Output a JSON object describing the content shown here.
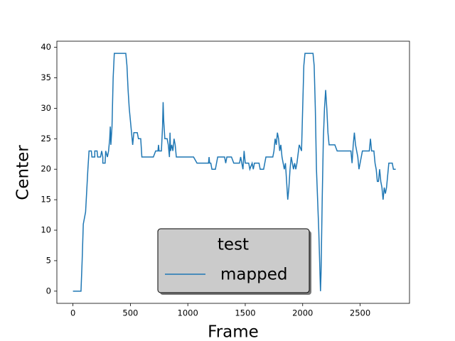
{
  "chart_data": {
    "type": "line",
    "x_label": "Frame",
    "y_label": "Center",
    "legend": "lower center",
    "legend_title": "test",
    "xlim": [
      -140,
      2930
    ],
    "ylim": [
      -2,
      41
    ],
    "xticks": [
      0,
      500,
      1000,
      1500,
      2000,
      2500
    ],
    "yticks": [
      0,
      5,
      10,
      15,
      20,
      25,
      30,
      35,
      40
    ],
    "series": [
      {
        "name": "mapped",
        "color": "#1f77b4",
        "x": [
          0,
          70,
          80,
          90,
          110,
          130,
          140,
          160,
          165,
          190,
          190,
          210,
          215,
          240,
          250,
          260,
          260,
          280,
          285,
          300,
          310,
          320,
          325,
          330,
          340,
          350,
          360,
          460,
          470,
          480,
          490,
          510,
          520,
          530,
          560,
          570,
          590,
          600,
          700,
          720,
          740,
          745,
          750,
          770,
          780,
          785,
          790,
          800,
          820,
          830,
          840,
          845,
          850,
          860,
          870,
          880,
          890,
          900,
          1000,
          1050,
          1080,
          1180,
          1185,
          1190,
          1200,
          1210,
          1240,
          1250,
          1260,
          1320,
          1330,
          1340,
          1380,
          1400,
          1450,
          1460,
          1470,
          1480,
          1490,
          1500,
          1530,
          1540,
          1560,
          1570,
          1580,
          1620,
          1630,
          1660,
          1680,
          1740,
          1750,
          1760,
          1770,
          1780,
          1790,
          1800,
          1810,
          1820,
          1830,
          1840,
          1850,
          1860,
          1870,
          1880,
          1890,
          1900,
          1910,
          1920,
          1930,
          1940,
          1950,
          1970,
          1990,
          2000,
          2010,
          2020,
          2090,
          2100,
          2110,
          2120,
          2140,
          2155,
          2160,
          2170,
          2180,
          2190,
          2200,
          2210,
          2220,
          2230,
          2260,
          2280,
          2300,
          2420,
          2430,
          2440,
          2450,
          2460,
          2480,
          2490,
          2500,
          2520,
          2580,
          2590,
          2600,
          2620,
          2630,
          2640,
          2650,
          2660,
          2670,
          2680,
          2690,
          2700,
          2710,
          2720,
          2730,
          2740,
          2750,
          2780,
          2790,
          2810
        ],
        "values": [
          0,
          0,
          5,
          11,
          13,
          20,
          23,
          23,
          22,
          22,
          23,
          23,
          22,
          22,
          23,
          22,
          21,
          21,
          23,
          22,
          23,
          25,
          27,
          24,
          27,
          35,
          39,
          39,
          37,
          33,
          30,
          26,
          24,
          26,
          26,
          25,
          25,
          22,
          22,
          23,
          23,
          24,
          23,
          23,
          27,
          31,
          28,
          25,
          25,
          24,
          22,
          26,
          23,
          24,
          23,
          25,
          24,
          22,
          22,
          22,
          21,
          21,
          22,
          21,
          21,
          20,
          20,
          21,
          22,
          22,
          21,
          22,
          22,
          21,
          21,
          22,
          21,
          20,
          23,
          21,
          21,
          20,
          21,
          20,
          21,
          21,
          20,
          20,
          22,
          22,
          23,
          25,
          24,
          26,
          25,
          23,
          24,
          22,
          21,
          20,
          21,
          18,
          15,
          17,
          20,
          22,
          21,
          20,
          21,
          20,
          21,
          24,
          23,
          30,
          37,
          39,
          39,
          37,
          30,
          20,
          10,
          0,
          3,
          15,
          25,
          30,
          33,
          30,
          26,
          24,
          24,
          24,
          23,
          23,
          21,
          24,
          26,
          24,
          22,
          20,
          21,
          23,
          23,
          25,
          23,
          23,
          21,
          20,
          18,
          18,
          20,
          18,
          17,
          15,
          17,
          16,
          17,
          19,
          21,
          21,
          20,
          20
        ]
      }
    ]
  }
}
